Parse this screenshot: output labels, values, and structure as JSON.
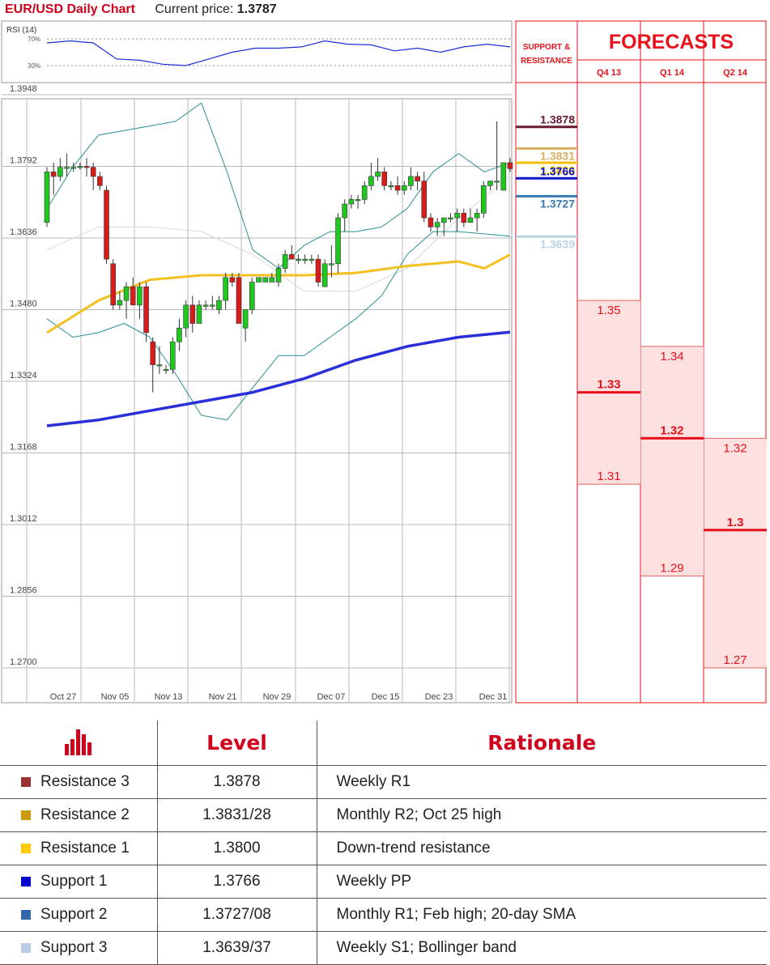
{
  "header": {
    "title": "EUR/USD Daily Chart",
    "price_label": "Current price:",
    "price_value": "1.3787"
  },
  "chart_data": {
    "type": "candlestick",
    "title": "EUR/USD Daily Chart",
    "y_ticks": [
      "1.3948",
      "1.3792",
      "1.3636",
      "1.3480",
      "1.3324",
      "1.3168",
      "1.3012",
      "1.2856",
      "1.2700"
    ],
    "ylim": [
      1.27,
      1.3948
    ],
    "x_ticks": [
      "Oct 27",
      "Nov 05",
      "Nov 13",
      "Nov 21",
      "Nov 29",
      "Dec 07",
      "Dec 15",
      "Dec 23",
      "Dec 31"
    ],
    "candles": [
      [
        1.367,
        1.379,
        1.366,
        1.378
      ],
      [
        1.378,
        1.38,
        1.373,
        1.377
      ],
      [
        1.377,
        1.381,
        1.376,
        1.379
      ],
      [
        1.379,
        1.382,
        1.377,
        1.379
      ],
      [
        1.379,
        1.38,
        1.378,
        1.379
      ],
      [
        1.379,
        1.38,
        1.3785,
        1.3792
      ],
      [
        1.3792,
        1.381,
        1.377,
        1.379
      ],
      [
        1.379,
        1.38,
        1.374,
        1.377
      ],
      [
        1.377,
        1.378,
        1.374,
        1.375
      ],
      [
        1.374,
        1.375,
        1.358,
        1.359
      ],
      [
        1.358,
        1.359,
        1.348,
        1.349
      ],
      [
        1.349,
        1.352,
        1.348,
        1.35
      ],
      [
        1.35,
        1.354,
        1.346,
        1.353
      ],
      [
        1.353,
        1.355,
        1.349,
        1.349
      ],
      [
        1.349,
        1.354,
        1.346,
        1.353
      ],
      [
        1.353,
        1.354,
        1.341,
        1.343
      ],
      [
        1.341,
        1.342,
        1.33,
        1.336
      ],
      [
        1.336,
        1.34,
        1.334,
        1.336
      ],
      [
        1.335,
        1.336,
        1.334,
        1.335
      ],
      [
        1.335,
        1.342,
        1.334,
        1.341
      ],
      [
        1.341,
        1.346,
        1.339,
        1.344
      ],
      [
        1.344,
        1.35,
        1.342,
        1.349
      ],
      [
        1.349,
        1.351,
        1.343,
        1.345
      ],
      [
        1.345,
        1.35,
        1.345,
        1.349
      ],
      [
        1.349,
        1.35,
        1.348,
        1.349
      ],
      [
        1.349,
        1.351,
        1.348,
        1.349
      ],
      [
        1.348,
        1.351,
        1.347,
        1.35
      ],
      [
        1.35,
        1.356,
        1.348,
        1.355
      ],
      [
        1.355,
        1.356,
        1.353,
        1.354
      ],
      [
        1.355,
        1.356,
        1.345,
        1.345
      ],
      [
        1.344,
        1.348,
        1.341,
        1.348
      ],
      [
        1.348,
        1.355,
        1.347,
        1.354
      ],
      [
        1.354,
        1.355,
        1.354,
        1.355
      ],
      [
        1.354,
        1.355,
        1.354,
        1.355
      ],
      [
        1.354,
        1.356,
        1.354,
        1.355
      ],
      [
        1.354,
        1.358,
        1.353,
        1.357
      ],
      [
        1.357,
        1.361,
        1.356,
        1.36
      ],
      [
        1.36,
        1.362,
        1.359,
        1.359
      ],
      [
        1.359,
        1.36,
        1.358,
        1.359
      ],
      [
        1.359,
        1.36,
        1.358,
        1.359
      ],
      [
        1.359,
        1.36,
        1.358,
        1.359
      ],
      [
        1.359,
        1.36,
        1.353,
        1.354
      ],
      [
        1.353,
        1.359,
        1.353,
        1.358
      ],
      [
        1.358,
        1.362,
        1.355,
        1.358
      ],
      [
        1.358,
        1.369,
        1.356,
        1.368
      ],
      [
        1.368,
        1.372,
        1.365,
        1.371
      ],
      [
        1.371,
        1.373,
        1.37,
        1.372
      ],
      [
        1.372,
        1.373,
        1.37,
        1.372
      ],
      [
        1.372,
        1.376,
        1.371,
        1.375
      ],
      [
        1.375,
        1.38,
        1.374,
        1.377
      ],
      [
        1.377,
        1.381,
        1.376,
        1.378
      ],
      [
        1.378,
        1.379,
        1.374,
        1.375
      ],
      [
        1.375,
        1.376,
        1.374,
        1.375
      ],
      [
        1.375,
        1.377,
        1.373,
        1.374
      ],
      [
        1.374,
        1.376,
        1.373,
        1.375
      ],
      [
        1.375,
        1.379,
        1.374,
        1.377
      ],
      [
        1.377,
        1.378,
        1.374,
        1.376
      ],
      [
        1.376,
        1.378,
        1.367,
        1.368
      ],
      [
        1.368,
        1.369,
        1.365,
        1.366
      ],
      [
        1.366,
        1.368,
        1.364,
        1.367
      ],
      [
        1.367,
        1.368,
        1.364,
        1.368
      ],
      [
        1.368,
        1.369,
        1.367,
        1.368
      ],
      [
        1.368,
        1.37,
        1.365,
        1.369
      ],
      [
        1.369,
        1.37,
        1.366,
        1.367
      ],
      [
        1.367,
        1.37,
        1.367,
        1.368
      ],
      [
        1.368,
        1.37,
        1.365,
        1.369
      ],
      [
        1.369,
        1.376,
        1.368,
        1.375
      ],
      [
        1.375,
        1.376,
        1.374,
        1.376
      ],
      [
        1.376,
        1.389,
        1.374,
        1.376
      ],
      [
        1.374,
        1.38,
        1.374,
        1.38
      ],
      [
        1.38,
        1.381,
        1.378,
        1.3787
      ]
    ],
    "sma_200": [
      [
        0,
        1.3227
      ],
      [
        10,
        1.324
      ],
      [
        20,
        1.326
      ],
      [
        30,
        1.328
      ],
      [
        40,
        1.33
      ],
      [
        50,
        1.333
      ],
      [
        60,
        1.337
      ],
      [
        70,
        1.34
      ],
      [
        80,
        1.342
      ],
      [
        90,
        1.3431
      ]
    ],
    "sma_50": [
      [
        0,
        1.343
      ],
      [
        10,
        1.35
      ],
      [
        20,
        1.3545
      ],
      [
        30,
        1.3555
      ],
      [
        40,
        1.3555
      ],
      [
        50,
        1.3555
      ],
      [
        60,
        1.356
      ],
      [
        70,
        1.3575
      ],
      [
        80,
        1.3585
      ],
      [
        85,
        1.357
      ],
      [
        90,
        1.36
      ]
    ],
    "boll_upper": [
      [
        0,
        1.37
      ],
      [
        5,
        1.379
      ],
      [
        10,
        1.386
      ],
      [
        20,
        1.388
      ],
      [
        25,
        1.389
      ],
      [
        30,
        1.393
      ],
      [
        35,
        1.378
      ],
      [
        40,
        1.361
      ],
      [
        45,
        1.357
      ],
      [
        50,
        1.362
      ],
      [
        55,
        1.365
      ],
      [
        60,
        1.365
      ],
      [
        65,
        1.366
      ],
      [
        70,
        1.37
      ],
      [
        75,
        1.378
      ],
      [
        80,
        1.382
      ],
      [
        85,
        1.378
      ],
      [
        90,
        1.38
      ]
    ],
    "boll_mid": [
      [
        0,
        1.361
      ],
      [
        10,
        1.366
      ],
      [
        20,
        1.366
      ],
      [
        30,
        1.365
      ],
      [
        40,
        1.36
      ],
      [
        50,
        1.352
      ],
      [
        60,
        1.352
      ],
      [
        70,
        1.357
      ],
      [
        80,
        1.368
      ],
      [
        90,
        1.377
      ]
    ],
    "boll_lower": [
      [
        0,
        1.346
      ],
      [
        5,
        1.342
      ],
      [
        10,
        1.343
      ],
      [
        15,
        1.345
      ],
      [
        20,
        1.342
      ],
      [
        25,
        1.334
      ],
      [
        30,
        1.325
      ],
      [
        35,
        1.324
      ],
      [
        40,
        1.331
      ],
      [
        45,
        1.338
      ],
      [
        50,
        1.338
      ],
      [
        55,
        1.342
      ],
      [
        60,
        1.346
      ],
      [
        65,
        1.351
      ],
      [
        70,
        1.36
      ],
      [
        75,
        1.365
      ],
      [
        80,
        1.365
      ],
      [
        90,
        1.364
      ]
    ],
    "rsi": {
      "label": "RSI (14)",
      "ticks": [
        "70%",
        "30%"
      ],
      "values": [
        [
          0,
          64
        ],
        [
          5,
          67
        ],
        [
          10,
          64
        ],
        [
          15,
          40
        ],
        [
          20,
          38
        ],
        [
          25,
          32
        ],
        [
          30,
          30
        ],
        [
          35,
          40
        ],
        [
          40,
          50
        ],
        [
          45,
          56
        ],
        [
          50,
          56
        ],
        [
          55,
          58
        ],
        [
          60,
          67
        ],
        [
          65,
          62
        ],
        [
          70,
          61
        ],
        [
          75,
          52
        ],
        [
          80,
          56
        ],
        [
          85,
          50
        ],
        [
          90,
          58
        ],
        [
          95,
          62
        ],
        [
          100,
          58
        ]
      ]
    },
    "sr_levels": [
      {
        "value": "1.3878",
        "color": "#6b1a2e"
      },
      {
        "value": "1.3831",
        "color": "#d8b060"
      },
      {
        "value": "1.3800",
        "color": "#f0c000"
      },
      {
        "value": "1.3766",
        "color": "#1016c8"
      },
      {
        "value": "1.3727",
        "color": "#3878b4"
      },
      {
        "value": "1.3639",
        "color": "#b8d4e4"
      }
    ],
    "sr_header": [
      "SUPPORT &",
      "RESISTANCE"
    ],
    "forecasts": {
      "title": "FORECASTS",
      "columns": [
        {
          "label": "Q4 13",
          "high": "1.35",
          "median": "1.33",
          "low": "1.31"
        },
        {
          "label": "Q1 14",
          "high": "1.34",
          "median": "1.32",
          "low": "1.29"
        },
        {
          "label": "Q2 14",
          "high": "1.32",
          "median": "1.3",
          "low": "1.27"
        }
      ]
    }
  },
  "table": {
    "headers": {
      "level": "Level",
      "rationale": "Rationale"
    },
    "rows": [
      {
        "name": "Resistance 3",
        "level": "1.3878",
        "rationale": "Weekly R1",
        "color": "#993333"
      },
      {
        "name": "Resistance 2",
        "level": "1.3831/28",
        "rationale": "Monthly R2; Oct 25 high",
        "color": "#cc9900"
      },
      {
        "name": "Resistance 1",
        "level": "1.3800",
        "rationale": "Down-trend resistance",
        "color": "#ffcc00"
      },
      {
        "name": "Support 1",
        "level": "1.3766",
        "rationale": "Weekly PP",
        "color": "#0000cc"
      },
      {
        "name": "Support 2",
        "level": "1.3727/08",
        "rationale": "Monthly R1; Feb high; 20-day SMA",
        "color": "#3366aa"
      },
      {
        "name": "Support 3",
        "level": "1.3639/37",
        "rationale": "Weekly S1; Bollinger band",
        "color": "#b8cce4"
      }
    ]
  }
}
